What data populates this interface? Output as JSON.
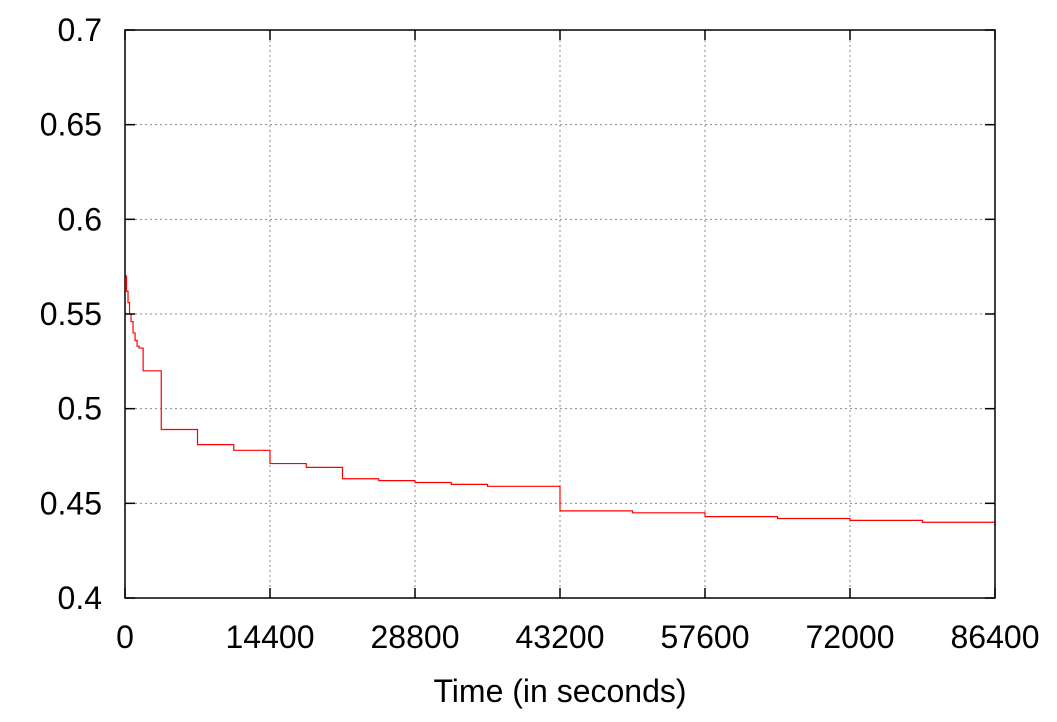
{
  "chart_data": {
    "type": "line",
    "title": "",
    "xlabel": "Time (in seconds)",
    "ylabel": "",
    "xlim": [
      0,
      86400
    ],
    "ylim": [
      0.4,
      0.7
    ],
    "grid": true,
    "xticks": [
      0,
      14400,
      28800,
      43200,
      57600,
      72000,
      86400
    ],
    "xtick_labels": [
      "0",
      "14400",
      "28800",
      "43200",
      "57600",
      "72000",
      "86400"
    ],
    "yticks": [
      0.4,
      0.45,
      0.5,
      0.55,
      0.6,
      0.65,
      0.7
    ],
    "ytick_labels": [
      "0.4",
      "0.45",
      "0.5",
      "0.55",
      "0.6",
      "0.65",
      "0.7"
    ],
    "series": [
      {
        "name": "",
        "color": "#ff0000",
        "line_style": "step",
        "x": [
          0,
          150,
          300,
          450,
          600,
          800,
          1000,
          1200,
          1400,
          1800,
          3600,
          3600,
          7200,
          7200,
          10800,
          10800,
          14400,
          14400,
          18000,
          21600,
          21600,
          25200,
          28800,
          32400,
          36000,
          39600,
          43200,
          43200,
          50400,
          57600,
          64800,
          72000,
          79200,
          86400
        ],
        "y": [
          0.57,
          0.562,
          0.556,
          0.55,
          0.546,
          0.54,
          0.536,
          0.533,
          0.532,
          0.52,
          0.518,
          0.489,
          0.487,
          0.481,
          0.479,
          0.478,
          0.477,
          0.471,
          0.469,
          0.468,
          0.463,
          0.462,
          0.461,
          0.46,
          0.459,
          0.459,
          0.458,
          0.446,
          0.445,
          0.443,
          0.442,
          0.441,
          0.44,
          0.438
        ]
      }
    ]
  }
}
